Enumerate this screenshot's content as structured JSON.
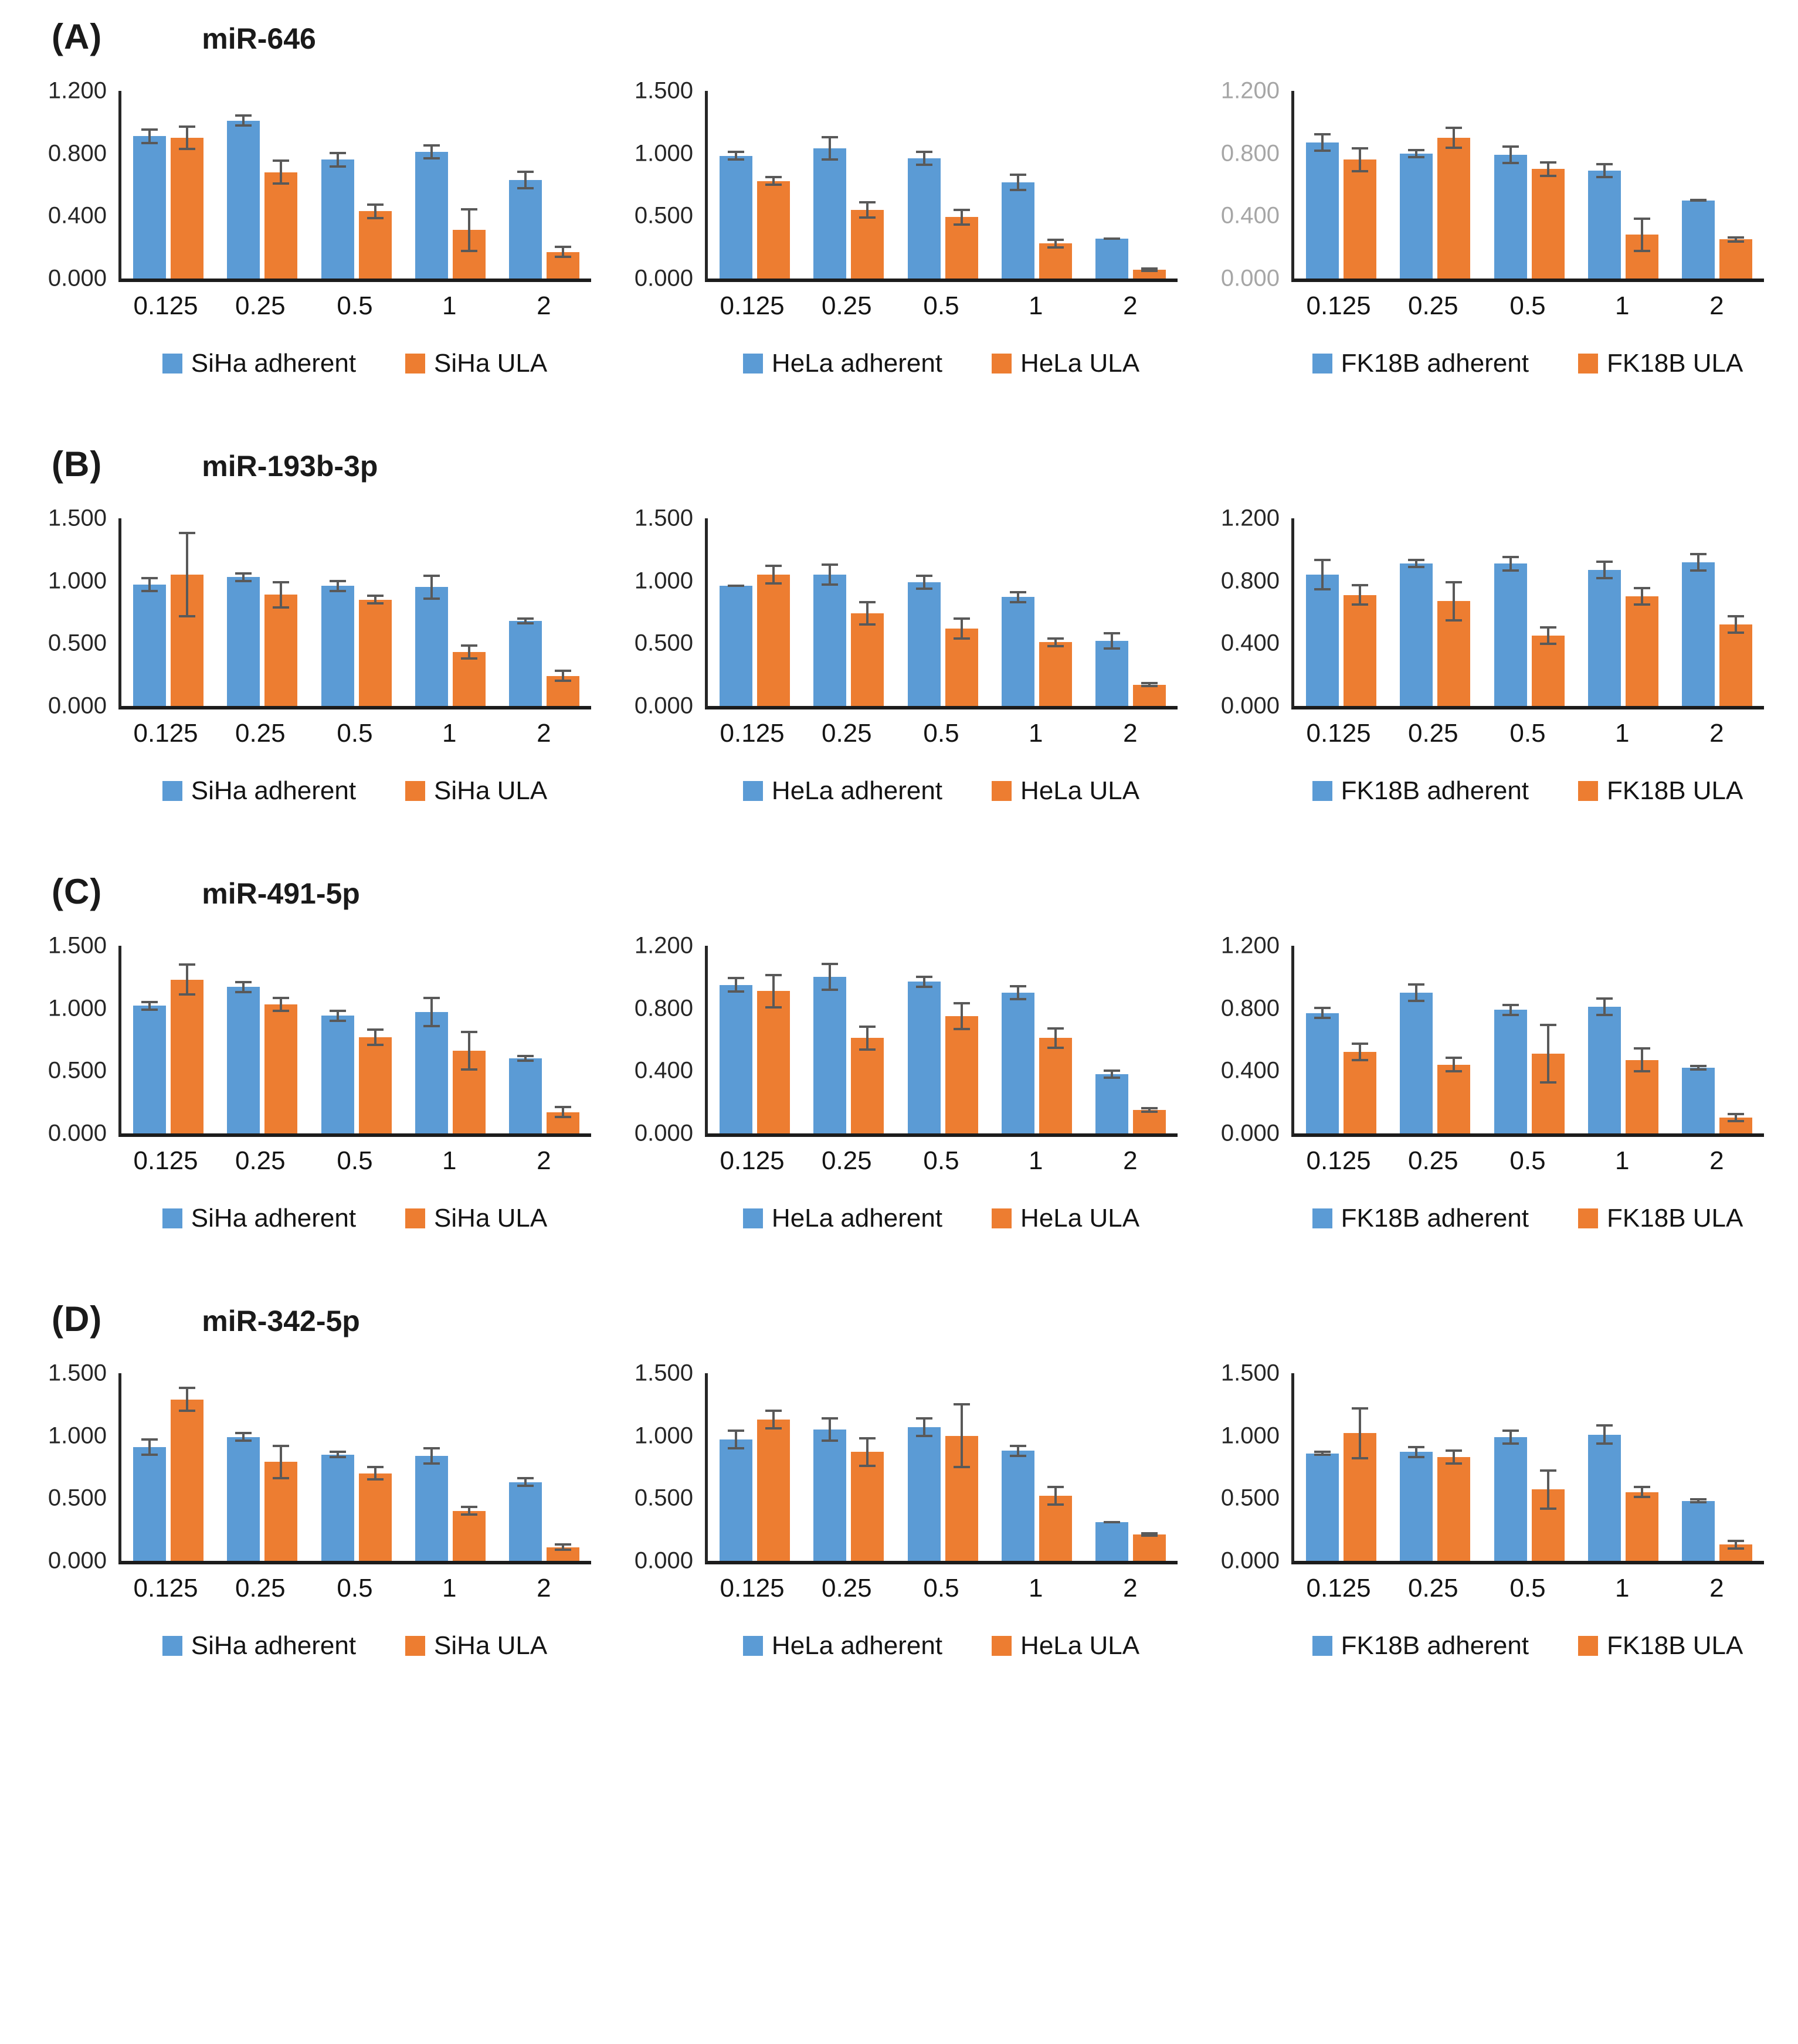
{
  "colors": {
    "adherent": "#5B9BD5",
    "ula": "#ED7D31",
    "error_bar": "#595959",
    "axis_line": "#262626",
    "tick_label": "#262626",
    "tick_label_muted": "#A6A6A6"
  },
  "figure": {
    "panels": [
      {
        "label": "(A)",
        "title": "miR-646"
      },
      {
        "label": "(B)",
        "title": "miR-193b-3p"
      },
      {
        "label": "(C)",
        "title": "miR-491-5p"
      },
      {
        "label": "(D)",
        "title": "miR-342-5p"
      }
    ]
  },
  "chart_data": [
    {
      "id": "miR-646-SiHa",
      "panel": "A",
      "title": "miR-646",
      "cell_line": "SiHa",
      "type": "bar",
      "categories": [
        "0.125",
        "0.25",
        "0.5",
        "1",
        "2"
      ],
      "ylim": [
        0,
        1.2
      ],
      "yticks": [
        "1.200",
        "0.800",
        "0.400",
        "0.000"
      ],
      "ytick_values": [
        1.2,
        0.8,
        0.4,
        0
      ],
      "tick_style": "default",
      "grid": false,
      "legend_position": "bottom",
      "series": [
        {
          "name": "SiHa adherent",
          "color_key": "adherent",
          "values": [
            0.91,
            1.01,
            0.76,
            0.81,
            0.63
          ],
          "errors": [
            0.05,
            0.04,
            0.05,
            0.05,
            0.06
          ]
        },
        {
          "name": "SiHa ULA",
          "color_key": "ula",
          "values": [
            0.9,
            0.68,
            0.43,
            0.31,
            0.17
          ],
          "errors": [
            0.08,
            0.08,
            0.05,
            0.14,
            0.04
          ]
        }
      ]
    },
    {
      "id": "miR-646-HeLa",
      "panel": "A",
      "title": "miR-646",
      "cell_line": "HeLa",
      "type": "bar",
      "categories": [
        "0.125",
        "0.25",
        "0.5",
        "1",
        "2"
      ],
      "ylim": [
        0,
        1.5
      ],
      "yticks": [
        "1.500",
        "1.000",
        "0.500",
        "0.000"
      ],
      "ytick_values": [
        1.5,
        1.0,
        0.5,
        0
      ],
      "tick_style": "default",
      "grid": false,
      "legend_position": "bottom",
      "series": [
        {
          "name": "HeLa adherent",
          "color_key": "adherent",
          "values": [
            0.98,
            1.04,
            0.96,
            0.77,
            0.32
          ],
          "errors": [
            0.04,
            0.1,
            0.06,
            0.07,
            0.01
          ]
        },
        {
          "name": "HeLa ULA",
          "color_key": "ula",
          "values": [
            0.78,
            0.55,
            0.49,
            0.28,
            0.07
          ],
          "errors": [
            0.04,
            0.07,
            0.07,
            0.04,
            0.02
          ]
        }
      ]
    },
    {
      "id": "miR-646-FK18B",
      "panel": "A",
      "title": "miR-646",
      "cell_line": "FK18B",
      "type": "bar",
      "categories": [
        "0.125",
        "0.25",
        "0.5",
        "1",
        "2"
      ],
      "ylim": [
        0,
        1.2
      ],
      "yticks": [
        "1.200",
        "0.800",
        "0.400",
        "0.000"
      ],
      "ytick_values": [
        1.2,
        0.8,
        0.4,
        0
      ],
      "tick_style": "muted",
      "grid": false,
      "legend_position": "bottom",
      "series": [
        {
          "name": "FK18B adherent",
          "color_key": "adherent",
          "values": [
            0.87,
            0.8,
            0.79,
            0.69,
            0.5
          ],
          "errors": [
            0.06,
            0.03,
            0.06,
            0.05,
            0.01
          ]
        },
        {
          "name": "FK18B ULA",
          "color_key": "ula",
          "values": [
            0.76,
            0.9,
            0.7,
            0.28,
            0.25
          ],
          "errors": [
            0.08,
            0.07,
            0.05,
            0.11,
            0.02
          ]
        }
      ]
    },
    {
      "id": "miR-193b-3p-SiHa",
      "panel": "B",
      "title": "miR-193b-3p",
      "cell_line": "SiHa",
      "type": "bar",
      "categories": [
        "0.125",
        "0.25",
        "0.5",
        "1",
        "2"
      ],
      "ylim": [
        0,
        1.5
      ],
      "yticks": [
        "1.500",
        "1.000",
        "0.500",
        "0.000"
      ],
      "ytick_values": [
        1.5,
        1.0,
        0.5,
        0
      ],
      "tick_style": "default",
      "grid": false,
      "legend_position": "bottom",
      "series": [
        {
          "name": "SiHa adherent",
          "color_key": "adherent",
          "values": [
            0.97,
            1.03,
            0.96,
            0.95,
            0.68
          ],
          "errors": [
            0.06,
            0.04,
            0.05,
            0.1,
            0.03
          ]
        },
        {
          "name": "SiHa ULA",
          "color_key": "ula",
          "values": [
            1.05,
            0.89,
            0.85,
            0.43,
            0.24
          ],
          "errors": [
            0.34,
            0.11,
            0.04,
            0.06,
            0.05
          ]
        }
      ]
    },
    {
      "id": "miR-193b-3p-HeLa",
      "panel": "B",
      "title": "miR-193b-3p",
      "cell_line": "HeLa",
      "type": "bar",
      "categories": [
        "0.125",
        "0.25",
        "0.5",
        "1",
        "2"
      ],
      "ylim": [
        0,
        1.5
      ],
      "yticks": [
        "1.500",
        "1.000",
        "0.500",
        "0.000"
      ],
      "ytick_values": [
        1.5,
        1.0,
        0.5,
        0
      ],
      "tick_style": "default",
      "grid": false,
      "legend_position": "bottom",
      "series": [
        {
          "name": "HeLa adherent",
          "color_key": "adherent",
          "values": [
            0.96,
            1.05,
            0.99,
            0.87,
            0.52
          ],
          "errors": [
            0.01,
            0.09,
            0.06,
            0.05,
            0.07
          ]
        },
        {
          "name": "HeLa ULA",
          "color_key": "ula",
          "values": [
            1.05,
            0.74,
            0.62,
            0.51,
            0.17
          ],
          "errors": [
            0.08,
            0.1,
            0.09,
            0.04,
            0.02
          ]
        }
      ]
    },
    {
      "id": "miR-193b-3p-FK18B",
      "panel": "B",
      "title": "miR-193b-3p",
      "cell_line": "FK18B",
      "type": "bar",
      "categories": [
        "0.125",
        "0.25",
        "0.5",
        "1",
        "2"
      ],
      "ylim": [
        0,
        1.2
      ],
      "yticks": [
        "1.200",
        "0.800",
        "0.400",
        "0.000"
      ],
      "ytick_values": [
        1.2,
        0.8,
        0.4,
        0
      ],
      "tick_style": "default",
      "grid": false,
      "legend_position": "bottom",
      "series": [
        {
          "name": "FK18B adherent",
          "color_key": "adherent",
          "values": [
            0.84,
            0.91,
            0.91,
            0.87,
            0.92
          ],
          "errors": [
            0.1,
            0.03,
            0.05,
            0.06,
            0.06
          ]
        },
        {
          "name": "FK18B ULA",
          "color_key": "ula",
          "values": [
            0.71,
            0.67,
            0.45,
            0.7,
            0.52
          ],
          "errors": [
            0.07,
            0.13,
            0.06,
            0.06,
            0.06
          ]
        }
      ]
    },
    {
      "id": "miR-491-5p-SiHa",
      "panel": "C",
      "title": "miR-491-5p",
      "cell_line": "SiHa",
      "type": "bar",
      "categories": [
        "0.125",
        "0.25",
        "0.5",
        "1",
        "2"
      ],
      "ylim": [
        0,
        1.5
      ],
      "yticks": [
        "1.500",
        "1.000",
        "0.500",
        "0.000"
      ],
      "ytick_values": [
        1.5,
        1.0,
        0.5,
        0
      ],
      "tick_style": "default",
      "grid": false,
      "legend_position": "bottom",
      "series": [
        {
          "name": "SiHa adherent",
          "color_key": "adherent",
          "values": [
            1.02,
            1.17,
            0.94,
            0.97,
            0.6
          ],
          "errors": [
            0.04,
            0.05,
            0.05,
            0.12,
            0.03
          ]
        },
        {
          "name": "SiHa ULA",
          "color_key": "ula",
          "values": [
            1.23,
            1.03,
            0.77,
            0.66,
            0.17
          ],
          "errors": [
            0.13,
            0.06,
            0.07,
            0.16,
            0.05
          ]
        }
      ]
    },
    {
      "id": "miR-491-5p-HeLa",
      "panel": "C",
      "title": "miR-491-5p",
      "cell_line": "HeLa",
      "type": "bar",
      "categories": [
        "0.125",
        "0.25",
        "0.5",
        "1",
        "2"
      ],
      "ylim": [
        0,
        1.2
      ],
      "yticks": [
        "1.200",
        "0.800",
        "0.400",
        "0.000"
      ],
      "ytick_values": [
        1.2,
        0.8,
        0.4,
        0
      ],
      "tick_style": "default",
      "grid": false,
      "legend_position": "bottom",
      "series": [
        {
          "name": "HeLa adherent",
          "color_key": "adherent",
          "values": [
            0.95,
            1.0,
            0.97,
            0.9,
            0.38
          ],
          "errors": [
            0.05,
            0.09,
            0.04,
            0.05,
            0.03
          ]
        },
        {
          "name": "HeLa ULA",
          "color_key": "ula",
          "values": [
            0.91,
            0.61,
            0.75,
            0.61,
            0.15
          ],
          "errors": [
            0.11,
            0.08,
            0.09,
            0.07,
            0.02
          ]
        }
      ]
    },
    {
      "id": "miR-491-5p-FK18B",
      "panel": "C",
      "title": "miR-491-5p",
      "cell_line": "FK18B",
      "type": "bar",
      "categories": [
        "0.125",
        "0.25",
        "0.5",
        "1",
        "2"
      ],
      "ylim": [
        0,
        1.2
      ],
      "yticks": [
        "1.200",
        "0.800",
        "0.400",
        "0.000"
      ],
      "ytick_values": [
        1.2,
        0.8,
        0.4,
        0
      ],
      "tick_style": "default",
      "grid": false,
      "legend_position": "bottom",
      "series": [
        {
          "name": "FK18B adherent",
          "color_key": "adherent",
          "values": [
            0.77,
            0.9,
            0.79,
            0.81,
            0.42
          ],
          "errors": [
            0.04,
            0.06,
            0.04,
            0.06,
            0.02
          ]
        },
        {
          "name": "FK18B ULA",
          "color_key": "ula",
          "values": [
            0.52,
            0.44,
            0.51,
            0.47,
            0.1
          ],
          "errors": [
            0.06,
            0.05,
            0.19,
            0.08,
            0.03
          ]
        }
      ]
    },
    {
      "id": "miR-342-5p-SiHa",
      "panel": "D",
      "title": "miR-342-5p",
      "cell_line": "SiHa",
      "type": "bar",
      "categories": [
        "0.125",
        "0.25",
        "0.5",
        "1",
        "2"
      ],
      "ylim": [
        0,
        1.5
      ],
      "yticks": [
        "1.500",
        "1.000",
        "0.500",
        "0.000"
      ],
      "ytick_values": [
        1.5,
        1.0,
        0.5,
        0
      ],
      "tick_style": "default",
      "grid": false,
      "legend_position": "bottom",
      "series": [
        {
          "name": "SiHa adherent",
          "color_key": "adherent",
          "values": [
            0.91,
            0.99,
            0.85,
            0.84,
            0.63
          ],
          "errors": [
            0.07,
            0.04,
            0.03,
            0.07,
            0.04
          ]
        },
        {
          "name": "SiHa ULA",
          "color_key": "ula",
          "values": [
            1.29,
            0.79,
            0.7,
            0.4,
            0.11
          ],
          "errors": [
            0.1,
            0.14,
            0.06,
            0.04,
            0.03
          ]
        }
      ]
    },
    {
      "id": "miR-342-5p-HeLa",
      "panel": "D",
      "title": "miR-342-5p",
      "cell_line": "HeLa",
      "type": "bar",
      "categories": [
        "0.125",
        "0.25",
        "0.5",
        "1",
        "2"
      ],
      "ylim": [
        0,
        1.5
      ],
      "yticks": [
        "1.500",
        "1.000",
        "0.500",
        "0.000"
      ],
      "ytick_values": [
        1.5,
        1.0,
        0.5,
        0
      ],
      "tick_style": "default",
      "grid": false,
      "legend_position": "bottom",
      "series": [
        {
          "name": "HeLa adherent",
          "color_key": "adherent",
          "values": [
            0.97,
            1.05,
            1.07,
            0.88,
            0.31
          ],
          "errors": [
            0.08,
            0.1,
            0.08,
            0.05,
            0.01
          ]
        },
        {
          "name": "HeLa ULA",
          "color_key": "ula",
          "values": [
            1.13,
            0.87,
            1.0,
            0.52,
            0.21
          ],
          "errors": [
            0.08,
            0.12,
            0.26,
            0.08,
            0.02
          ]
        }
      ]
    },
    {
      "id": "miR-342-5p-FK18B",
      "panel": "D",
      "title": "miR-342-5p",
      "cell_line": "FK18B",
      "type": "bar",
      "categories": [
        "0.125",
        "0.25",
        "0.5",
        "1",
        "2"
      ],
      "ylim": [
        0,
        1.5
      ],
      "yticks": [
        "1.500",
        "1.000",
        "0.500",
        "0.000"
      ],
      "ytick_values": [
        1.5,
        1.0,
        0.5,
        0
      ],
      "tick_style": "default",
      "grid": false,
      "legend_position": "bottom",
      "series": [
        {
          "name": "FK18B adherent",
          "color_key": "adherent",
          "values": [
            0.86,
            0.87,
            0.99,
            1.01,
            0.48
          ],
          "errors": [
            0.02,
            0.05,
            0.06,
            0.08,
            0.02
          ]
        },
        {
          "name": "FK18B ULA",
          "color_key": "ula",
          "values": [
            1.02,
            0.83,
            0.57,
            0.55,
            0.13
          ],
          "errors": [
            0.21,
            0.06,
            0.16,
            0.05,
            0.04
          ]
        }
      ]
    }
  ]
}
